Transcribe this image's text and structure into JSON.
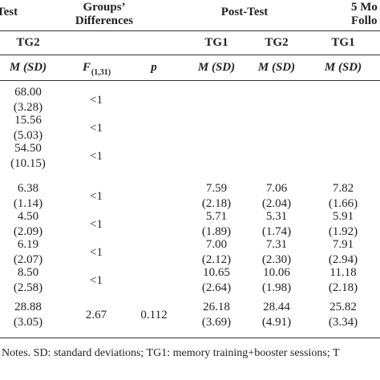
{
  "header": {
    "pretest": "Test",
    "groups": [
      "Groups’",
      "Differences"
    ],
    "posttest": "Post-Test",
    "followup": [
      "5 Mo",
      "Follo"
    ],
    "groups_row": {
      "pre_tg2": "TG2",
      "post_tg1": "TG1",
      "post_tg2": "TG2",
      "fu_tg1": "TG1"
    },
    "stats_row": {
      "pre_tg2": "M (SD)",
      "f": "F",
      "f_sub": "(1,31)",
      "p": "p",
      "post_tg1": "M (SD)",
      "post_tg2": "M (SD)",
      "fu_tg1": "M (SD)"
    }
  },
  "table": {
    "rows": [
      {
        "pre_tg2": [
          "68.00",
          "(3.28)"
        ],
        "f": [
          "<1"
        ]
      },
      {
        "pre_tg2": [
          "15.56",
          "(5.03)"
        ],
        "f": [
          "<1"
        ]
      },
      {
        "pre_tg2": [
          "54.50",
          "(10.15)"
        ],
        "f": [
          "<1"
        ]
      },
      {
        "pre_tg2": [
          "6.38",
          "(1.14)"
        ],
        "f": [
          "<1"
        ],
        "post_tg1": [
          "7.59",
          "(2.18)"
        ],
        "post_tg2": [
          "7.06",
          "(2.04)"
        ],
        "fu_tg1": [
          "7.82",
          "(1.66)"
        ]
      },
      {
        "pre_tg2": [
          "4.50",
          "(2.09)"
        ],
        "f": [
          "<1"
        ],
        "post_tg1": [
          "5.71",
          "(1.89)"
        ],
        "post_tg2": [
          "5.31",
          "(1.74)"
        ],
        "fu_tg1": [
          "5.91",
          "(1.92)"
        ]
      },
      {
        "pre_tg2": [
          "6.19",
          "(2.07)"
        ],
        "f": [
          "<1"
        ],
        "post_tg1": [
          "7.00",
          "(2.12)"
        ],
        "post_tg2": [
          "7.31",
          "(2.30)"
        ],
        "fu_tg1": [
          "7.91",
          "(2.94)"
        ]
      },
      {
        "pre_tg2": [
          "8.50",
          "(2.58)"
        ],
        "f": [
          "<1"
        ],
        "post_tg1": [
          "10.65",
          "(2.64)"
        ],
        "post_tg2": [
          "10.06",
          "(1.98)"
        ],
        "fu_tg1": [
          "11.18",
          "(2.18)"
        ]
      },
      {
        "pre_tg2": [
          "28.88",
          "(3.05)"
        ],
        "f": [
          "2.67"
        ],
        "p": [
          "0.112"
        ],
        "post_tg1": [
          "26.18",
          "(3.69)"
        ],
        "post_tg2": [
          "28.44",
          "(4.91)"
        ],
        "fu_tg1": [
          "25.82",
          "(3.34)"
        ]
      }
    ]
  },
  "notes": "Notes. SD: standard deviations; TG1: memory training+booster sessions; T"
}
